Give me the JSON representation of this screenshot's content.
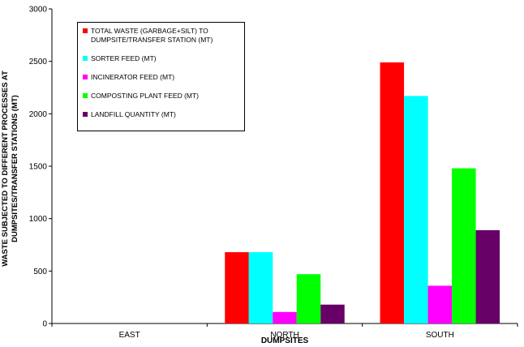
{
  "chart_data": {
    "type": "bar",
    "y_label": "WASTE SUBJECTED TO DIFFERENT PROCESSES AT DUMPSITES/TRANSFER STATIONS (MT)",
    "x_label": "DUMPSITES",
    "categories": [
      "EAST",
      "NORTH",
      "SOUTH"
    ],
    "series": [
      {
        "name": "TOTAL WASTE (GARBAGE+SILT) TO DUMPSITE/TRANSFER STATION (MT)",
        "color": "#ff0000",
        "values": [
          0,
          680,
          2490
        ]
      },
      {
        "name": "SORTER FEED (MT)",
        "color": "#00ffff",
        "values": [
          0,
          680,
          2170
        ]
      },
      {
        "name": "INCINERATOR FEED (MT)",
        "color": "#ff00ff",
        "values": [
          0,
          110,
          360
        ]
      },
      {
        "name": "COMPOSTING PLANT FEED (MT)",
        "color": "#00ff00",
        "values": [
          0,
          470,
          1480
        ]
      },
      {
        "name": "LANDFILL QUANTITY (MT)",
        "color": "#660066",
        "values": [
          0,
          180,
          890
        ]
      }
    ],
    "ylim": [
      0,
      3000
    ],
    "yticks": [
      0,
      500,
      1000,
      1500,
      2000,
      2500,
      3000
    ],
    "grid": false
  }
}
